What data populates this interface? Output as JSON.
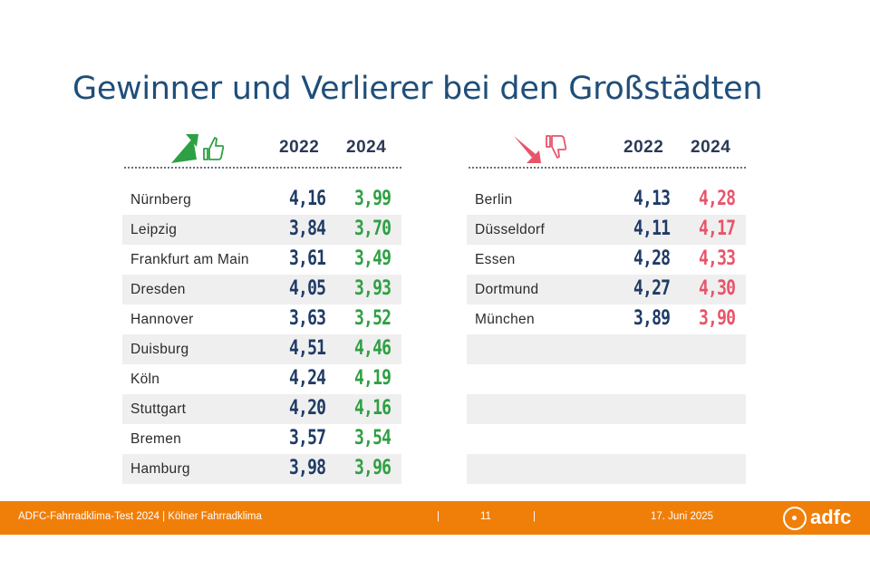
{
  "title": "Gewinner und Verlierer bei den Großstädten",
  "colors": {
    "title": "#1f4e79",
    "footer": "#f07f0a",
    "winner": "#2ea043",
    "loser": "#e8546a",
    "value2022": "#1f3b66"
  },
  "winners": {
    "icon": "thumbs-up-arrow-icon",
    "headers": [
      "2022",
      "2024"
    ],
    "rows": [
      {
        "city": "Nürnberg",
        "v2022": "4,16",
        "v2024": "3,99"
      },
      {
        "city": "Leipzig",
        "v2022": "3,84",
        "v2024": "3,70"
      },
      {
        "city": "Frankfurt am Main",
        "v2022": "3,61",
        "v2024": "3,49"
      },
      {
        "city": "Dresden",
        "v2022": "4,05",
        "v2024": "3,93"
      },
      {
        "city": "Hannover",
        "v2022": "3,63",
        "v2024": "3,52"
      },
      {
        "city": "Duisburg",
        "v2022": "4,51",
        "v2024": "4,46"
      },
      {
        "city": "Köln",
        "v2022": "4,24",
        "v2024": "4,19"
      },
      {
        "city": "Stuttgart",
        "v2022": "4,20",
        "v2024": "4,16"
      },
      {
        "city": "Bremen",
        "v2022": "3,57",
        "v2024": "3,54"
      },
      {
        "city": "Hamburg",
        "v2022": "3,98",
        "v2024": "3,96"
      }
    ]
  },
  "losers": {
    "icon": "thumbs-down-arrow-icon",
    "headers": [
      "2022",
      "2024"
    ],
    "rows": [
      {
        "city": "Berlin",
        "v2022": "4,13",
        "v2024": "4,28"
      },
      {
        "city": "Düsseldorf",
        "v2022": "4,11",
        "v2024": "4,17"
      },
      {
        "city": "Essen",
        "v2022": "4,28",
        "v2024": "4,33"
      },
      {
        "city": "Dortmund",
        "v2022": "4,27",
        "v2024": "4,30"
      },
      {
        "city": "München",
        "v2022": "3,89",
        "v2024": "3,90"
      },
      {
        "city": "",
        "v2022": "",
        "v2024": ""
      },
      {
        "city": "",
        "v2022": "",
        "v2024": ""
      },
      {
        "city": "",
        "v2022": "",
        "v2024": ""
      },
      {
        "city": "",
        "v2022": "",
        "v2024": ""
      },
      {
        "city": "",
        "v2022": "",
        "v2024": ""
      }
    ]
  },
  "footer": {
    "left": "ADFC-Fahrradklima-Test 2024 | Kölner Fahrradklima",
    "separator": "|",
    "page": "11",
    "date": "17. Juni 2025",
    "logo_text": "adfc"
  }
}
